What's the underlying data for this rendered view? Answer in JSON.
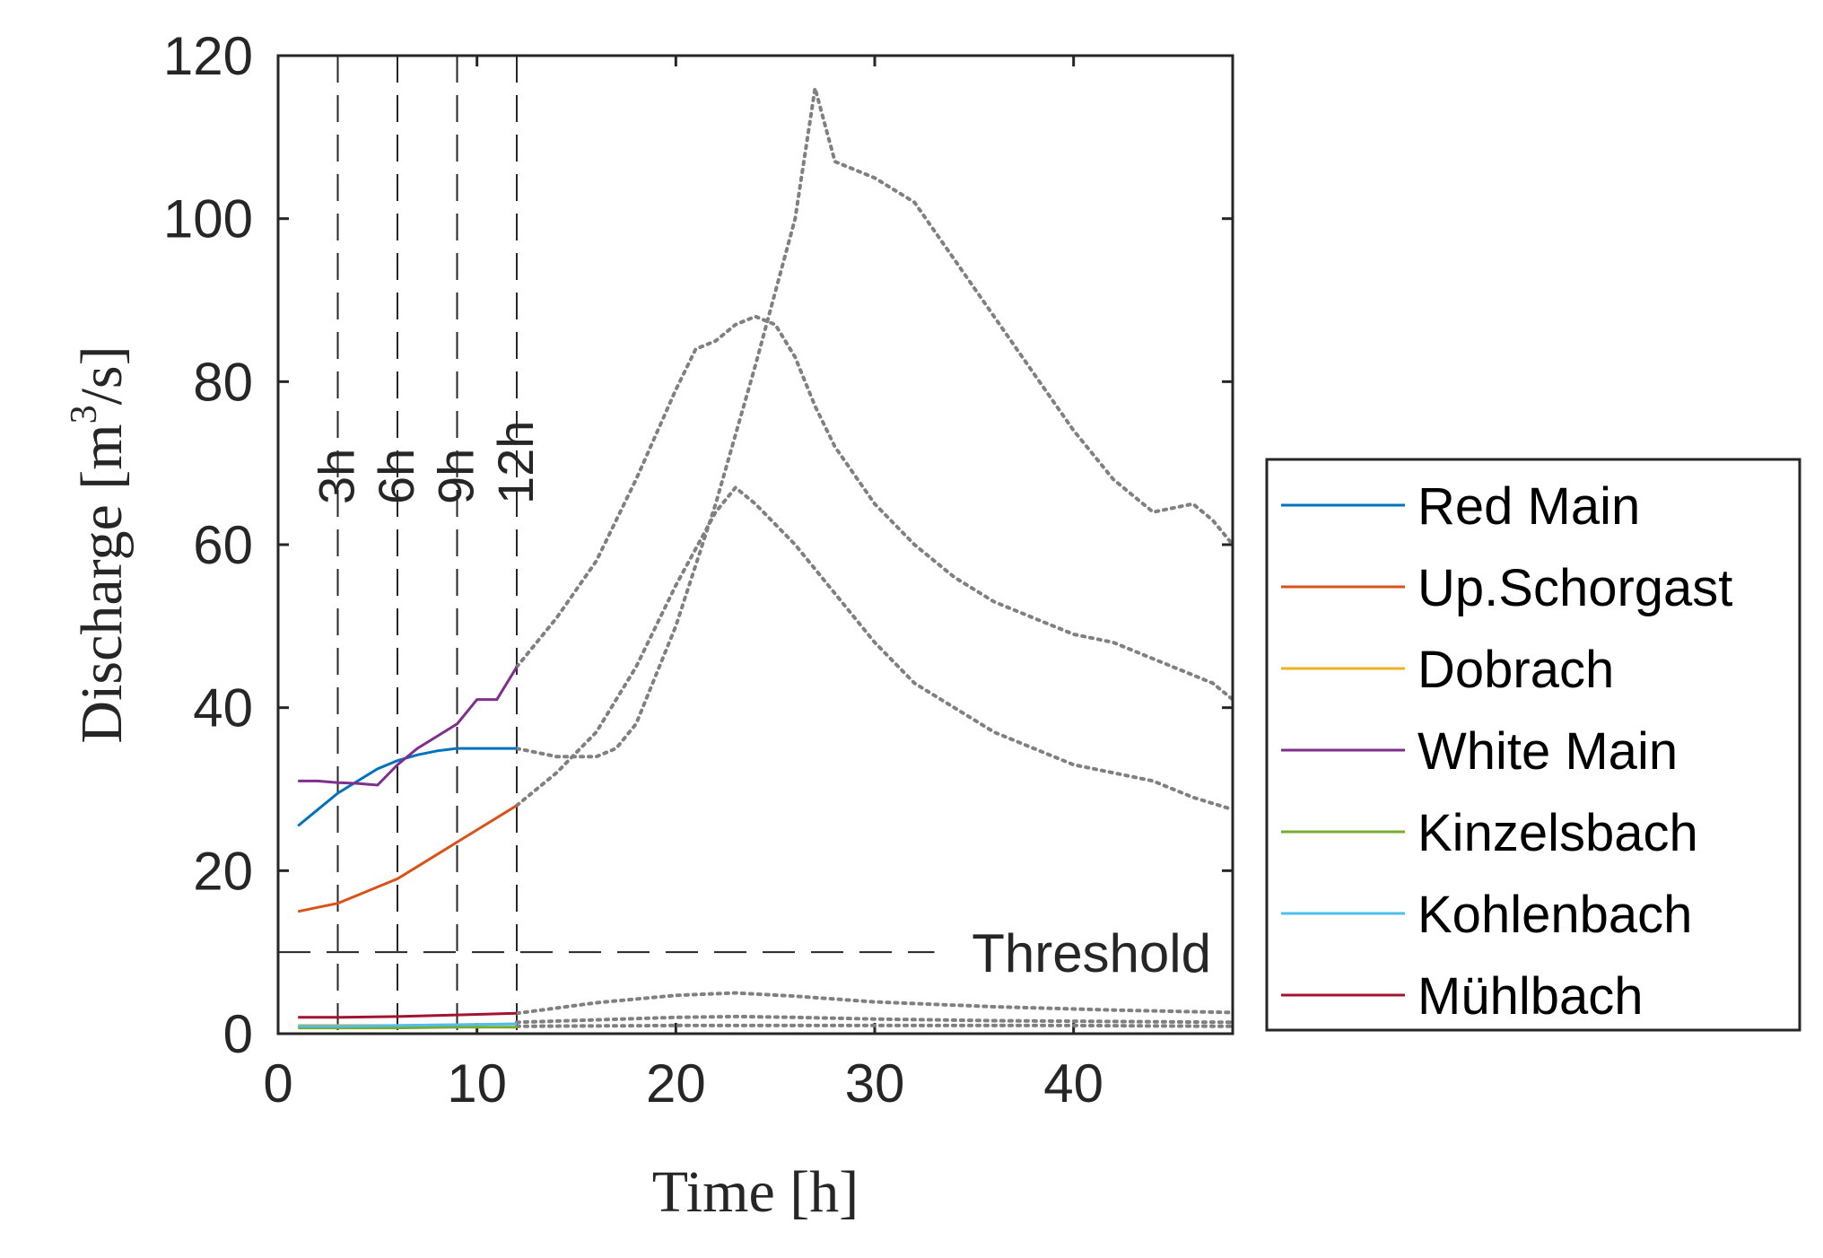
{
  "chart_data": {
    "type": "line",
    "title": "",
    "xlabel": "Time [h]",
    "ylabel_main": "Discharge [m",
    "ylabel_sup": "3",
    "ylabel_end": "/s]",
    "xlim": [
      0,
      48
    ],
    "ylim": [
      0,
      120
    ],
    "xticks": [
      0,
      10,
      20,
      30,
      40
    ],
    "yticks": [
      0,
      20,
      40,
      60,
      80,
      100,
      120
    ],
    "threshold": {
      "value": 10,
      "label": "Threshold"
    },
    "vlines": [
      {
        "x": 3,
        "label": "3h"
      },
      {
        "x": 6,
        "label": "6h"
      },
      {
        "x": 9,
        "label": "9h"
      },
      {
        "x": 12,
        "label": "12h"
      }
    ],
    "series": [
      {
        "name": "Red Main",
        "color": "#0072BD",
        "x": [
          1,
          2,
          3,
          4,
          5,
          6,
          7,
          8,
          9,
          10,
          11,
          12
        ],
        "values": [
          25.5,
          27.5,
          29.5,
          31,
          32.5,
          33.5,
          34.2,
          34.7,
          35,
          35,
          35,
          35
        ]
      },
      {
        "name": "Up.Schorgast",
        "color": "#D95319",
        "x": [
          1,
          2,
          3,
          4,
          5,
          6,
          7,
          8,
          9,
          10,
          11,
          12
        ],
        "values": [
          15,
          15.5,
          16,
          17,
          18,
          19,
          20.5,
          22,
          23.5,
          25,
          26.5,
          28
        ]
      },
      {
        "name": "Dobrach",
        "color": "#EDB120",
        "x": [
          1,
          3,
          6,
          9,
          12
        ],
        "values": [
          1,
          1,
          1,
          1.1,
          1.2
        ]
      },
      {
        "name": "White Main",
        "color": "#7E2F8E",
        "x": [
          1,
          2,
          3,
          4,
          5,
          6,
          7,
          8,
          9,
          10,
          11,
          12
        ],
        "values": [
          31,
          31,
          30.8,
          30.7,
          30.5,
          33,
          35,
          36.5,
          38,
          41,
          41,
          45
        ]
      },
      {
        "name": "Kinzelsbach",
        "color": "#77AC30",
        "x": [
          1,
          3,
          6,
          9,
          12
        ],
        "values": [
          0.7,
          0.7,
          0.7,
          0.8,
          0.8
        ]
      },
      {
        "name": "Kohlenbach",
        "color": "#4DBEEE",
        "x": [
          1,
          3,
          6,
          9,
          12
        ],
        "values": [
          0.9,
          0.9,
          1,
          1.1,
          1.2
        ]
      },
      {
        "name": "Mühlbach",
        "color": "#A2142F",
        "x": [
          1,
          3,
          6,
          9,
          12
        ],
        "values": [
          2,
          2,
          2.1,
          2.3,
          2.5
        ]
      }
    ],
    "forecast_color": "#808080",
    "forecasts": [
      {
        "x": [
          12,
          14,
          16,
          18,
          20,
          21,
          22,
          23,
          24,
          25,
          26,
          27,
          28,
          30,
          32,
          34,
          36,
          38,
          40,
          42,
          44,
          46,
          47,
          48
        ],
        "values": [
          45,
          51,
          58,
          68,
          79,
          84,
          85,
          87,
          88,
          87,
          83,
          77,
          72,
          65,
          60,
          56,
          53,
          51,
          49,
          48,
          46,
          44,
          43,
          41
        ]
      },
      {
        "x": [
          12,
          14,
          16,
          17,
          18,
          20,
          22,
          24,
          26,
          27,
          28,
          30,
          32,
          34,
          36,
          38,
          40,
          42,
          44,
          46,
          47,
          48
        ],
        "values": [
          35,
          34,
          34,
          35,
          38,
          50,
          65,
          82,
          100,
          116,
          107,
          105,
          102,
          95,
          88,
          81,
          74,
          68,
          64,
          65,
          63,
          60
        ]
      },
      {
        "x": [
          12,
          14,
          16,
          18,
          20,
          22,
          23,
          24,
          26,
          28,
          30,
          32,
          34,
          36,
          38,
          40,
          42,
          44,
          46,
          48
        ],
        "values": [
          28,
          32,
          37,
          45,
          55,
          64,
          67,
          65,
          60,
          54,
          48,
          43,
          40,
          37,
          35,
          33,
          32,
          31,
          29,
          27.5
        ]
      },
      {
        "x": [
          12,
          16,
          20,
          23,
          26,
          30,
          36,
          42,
          48
        ],
        "values": [
          2.5,
          3.8,
          4.7,
          5,
          4.6,
          3.9,
          3.3,
          2.9,
          2.6
        ]
      },
      {
        "x": [
          12,
          16,
          20,
          23,
          26,
          30,
          36,
          42,
          48
        ],
        "values": [
          1.4,
          1.7,
          2,
          2.1,
          2,
          1.8,
          1.6,
          1.5,
          1.4
        ]
      },
      {
        "x": [
          12,
          20,
          30,
          40,
          48
        ],
        "values": [
          0.9,
          1,
          1,
          1,
          0.9
        ]
      }
    ],
    "legend_position": "right"
  }
}
